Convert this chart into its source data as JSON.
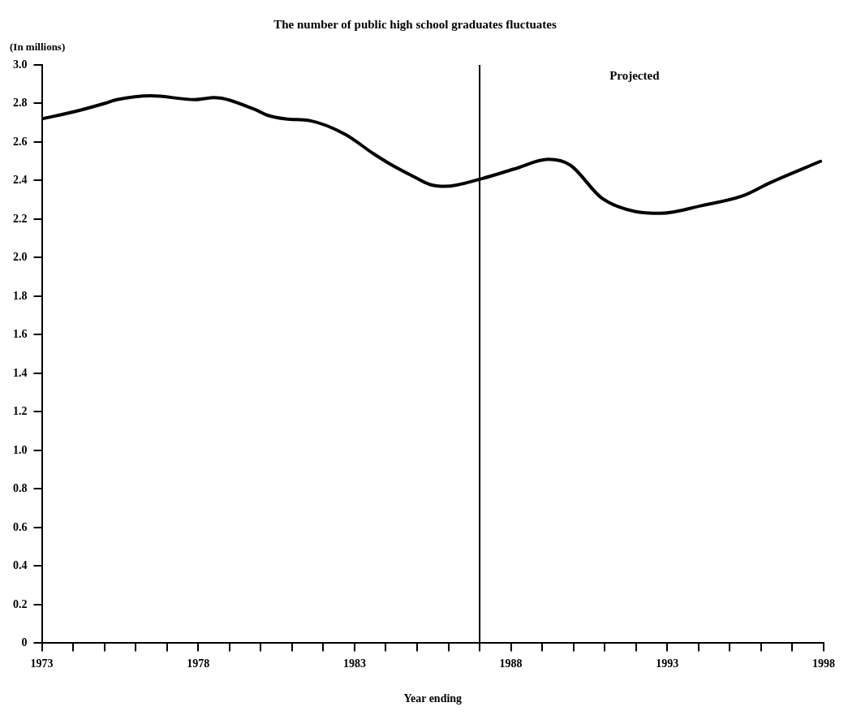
{
  "chart_data": {
    "type": "line",
    "title": "The number of public high school graduates fluctuates",
    "ylabel": "(In millions)",
    "xlabel": "Year ending",
    "x": [
      1973,
      1974.1,
      1975,
      1975.4,
      1976.5,
      1977.9,
      1978.5,
      1979.8,
      1980.2,
      1980.8,
      1981.6,
      1982.7,
      1983.6,
      1984.2,
      1984.9,
      1985.4,
      1985.9,
      1987.07,
      1988.1,
      1989.2,
      1989.9,
      1990.9,
      1991.96,
      1992.8,
      1994.1,
      1995.4,
      1996.3,
      1997.9
    ],
    "series": [
      {
        "color": "#000000",
        "values": [
          2.72,
          2.76,
          2.8,
          2.82,
          2.84,
          2.82,
          2.83,
          2.77,
          2.74,
          2.72,
          2.71,
          2.64,
          2.54,
          2.48,
          2.42,
          2.38,
          2.37,
          2.41,
          2.46,
          2.51,
          2.48,
          2.31,
          2.24,
          2.23,
          2.27,
          2.32,
          2.39,
          2.5
        ]
      }
    ],
    "xlim": [
      1973,
      1998
    ],
    "xticks": [
      1973,
      {
        "value": 1974,
        "label": null
      },
      {
        "value": 1975,
        "label": null
      },
      {
        "value": 1976,
        "label": null
      },
      {
        "value": 1977,
        "label": null
      },
      1978,
      {
        "value": 1979,
        "label": null
      },
      {
        "value": 1980,
        "label": null
      },
      {
        "value": 1981,
        "label": null
      },
      {
        "value": 1982,
        "label": null
      },
      1983,
      {
        "value": 1984,
        "label": null
      },
      {
        "value": 1985,
        "label": null
      },
      {
        "value": 1986,
        "label": null
      },
      {
        "value": 1987,
        "label": null
      },
      1988,
      {
        "value": 1989,
        "label": null
      },
      {
        "value": 1990,
        "label": null
      },
      {
        "value": 1991,
        "label": null
      },
      {
        "value": 1992,
        "label": null
      },
      1993,
      {
        "value": 1994,
        "label": null
      },
      {
        "value": 1995,
        "label": null
      },
      {
        "value": 1996,
        "label": null
      },
      {
        "value": 1997,
        "label": null
      },
      1998
    ],
    "ylim": [
      0,
      3
    ],
    "yticks": [
      0,
      {
        "value": 0.2,
        "label": "0.2"
      },
      {
        "value": 0.4,
        "label": "0.4"
      },
      {
        "value": 0.6,
        "label": "0.6"
      },
      {
        "value": 0.8,
        "label": "0.8"
      },
      {
        "value": 1,
        "label": "1.0"
      },
      {
        "value": 1.2,
        "label": "1.2"
      },
      {
        "value": 1.4,
        "label": "1.4"
      },
      {
        "value": 1.6,
        "label": "1.6"
      },
      {
        "value": 1.8,
        "label": "1.8"
      },
      {
        "value": 2,
        "label": "2.0"
      },
      {
        "value": 2.2,
        "label": "2.2"
      },
      {
        "value": 2.4,
        "label": "2.4"
      },
      {
        "value": 2.6,
        "label": "2.6"
      },
      {
        "value": 2.8,
        "label": "2.8"
      },
      {
        "value": 3,
        "label": "3.0"
      }
    ],
    "ref_lines": [
      {
        "axis": "x",
        "value": 1987,
        "color": "#000000"
      }
    ],
    "annotations": [
      "Projected"
    ],
    "grid": false,
    "legend": false,
    "marker": "none",
    "line_style": "solid"
  }
}
